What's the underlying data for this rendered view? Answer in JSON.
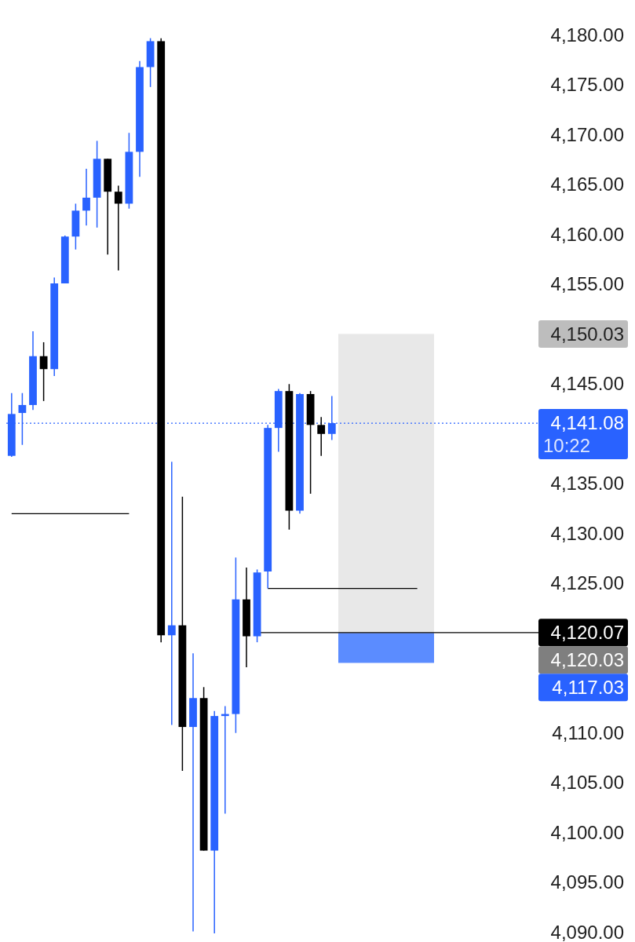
{
  "chart_data": {
    "type": "candlestick",
    "categories": [
      null,
      null,
      null,
      null,
      null,
      null,
      null,
      null,
      null,
      null,
      null,
      null,
      null,
      null,
      null,
      null,
      null,
      null,
      null,
      null,
      null,
      null,
      null,
      null,
      null,
      null,
      null,
      null,
      null,
      null,
      null,
      null,
      null,
      null,
      null,
      null,
      null,
      null,
      null,
      null,
      null,
      null,
      null,
      null,
      null,
      null,
      null,
      null,
      null,
      null
    ],
    "ohlc": [
      [
        4137.8,
        4144.1,
        4137.7,
        4142.0
      ],
      [
        4142.1,
        4144.1,
        4138.9,
        4142.9
      ],
      [
        4142.9,
        4150.3,
        4142.4,
        4147.8
      ],
      [
        4147.8,
        4149.2,
        4143.3,
        4146.5
      ],
      [
        4146.5,
        4155.7,
        4145.8,
        4155.1
      ],
      [
        4155.1,
        4159.9,
        4155.1,
        4159.8
      ],
      [
        4159.8,
        4163.1,
        4158.5,
        4162.4
      ],
      [
        4162.4,
        4166.6,
        4160.9,
        4163.7
      ],
      [
        4163.7,
        4169.4,
        4160.7,
        4167.6
      ],
      [
        4167.6,
        4167.6,
        4158.0,
        4164.3
      ],
      [
        4164.3,
        4164.9,
        4156.4,
        4163.1
      ],
      [
        4163.1,
        4170.2,
        4162.6,
        4168.3
      ],
      [
        4168.3,
        4177.4,
        4165.8,
        4176.8
      ],
      [
        4176.8,
        4179.7,
        4174.8,
        4179.4
      ],
      [
        4179.4,
        4179.7,
        4119.1,
        4119.8
      ],
      [
        4119.8,
        4137.2,
        4110.8,
        4120.8
      ],
      [
        4120.8,
        4133.7,
        4106.2,
        4110.6
      ],
      [
        4110.6,
        4118.0,
        4090.1,
        4113.5
      ],
      [
        4113.5,
        4114.6,
        4098.2,
        4098.2
      ],
      [
        4098.2,
        4112.2,
        4089.9,
        4111.7
      ],
      [
        4111.7,
        4112.7,
        4101.9,
        4111.9
      ],
      [
        4111.9,
        4127.6,
        4110.0,
        4123.4
      ],
      [
        4123.4,
        4126.6,
        4116.6,
        4119.7
      ],
      [
        4119.7,
        4126.4,
        4119.1,
        4126.1
      ],
      [
        4126.2,
        4140.9,
        4124.5,
        4140.6
      ],
      [
        4140.6,
        4144.5,
        4138.2,
        4144.3
      ],
      [
        4144.3,
        4145.0,
        4130.4,
        4132.3
      ],
      [
        4132.3,
        4144.1,
        4132.0,
        4144.0
      ],
      [
        4144.0,
        4144.3,
        4134.0,
        4140.9
      ],
      [
        4140.9,
        4141.7,
        4137.8,
        4140.0
      ],
      [
        4140.0,
        4143.8,
        4139.4,
        4141.08
      ],
      null,
      null,
      null,
      null,
      null,
      null,
      null,
      null,
      null,
      null,
      null,
      null,
      null,
      null,
      null,
      null,
      null,
      null,
      null
    ],
    "series": [
      {
        "type": "line",
        "color": "#000000",
        "values": [
          4132.0,
          4132.0,
          4132.0,
          4132.0,
          4132.0,
          4132.0,
          4132.0,
          4132.0,
          4132.0,
          4132.0,
          4132.0,
          4132.0,
          null,
          null,
          null,
          null,
          null,
          null,
          null,
          null,
          null,
          null,
          null,
          null,
          null,
          null,
          null,
          null,
          null,
          null,
          null,
          null,
          null,
          null,
          null,
          null,
          null,
          null,
          null,
          null,
          null,
          null,
          null,
          null,
          null,
          null,
          null,
          null,
          null,
          null
        ]
      },
      {
        "type": "line",
        "color": "#000000",
        "values": [
          null,
          null,
          null,
          null,
          null,
          null,
          null,
          null,
          null,
          null,
          null,
          null,
          null,
          null,
          null,
          null,
          null,
          null,
          null,
          null,
          null,
          null,
          null,
          null,
          4124.5,
          4124.5,
          4124.5,
          4124.5,
          4124.5,
          4124.5,
          4124.5,
          4124.5,
          4124.5,
          4124.5,
          4124.5,
          4124.5,
          4124.5,
          4124.5,
          4124.5,
          null,
          null,
          null,
          null,
          null,
          null,
          null,
          null,
          null,
          null,
          null
        ]
      }
    ],
    "ylim": [
      4088.4,
      4182.9
    ],
    "yticks": [
      {
        "value": 4090,
        "label": "4,090.00"
      },
      {
        "value": 4095,
        "label": "4,095.00"
      },
      {
        "value": 4100,
        "label": "4,100.00"
      },
      {
        "value": 4105,
        "label": "4,105.00"
      },
      {
        "value": 4110,
        "label": "4,110.00"
      },
      {
        "value": 4125,
        "label": "4,125.00"
      },
      {
        "value": 4130,
        "label": "4,130.00"
      },
      {
        "value": 4135,
        "label": "4,135.00"
      },
      {
        "value": 4145,
        "label": "4,145.00"
      },
      {
        "value": 4155,
        "label": "4,155.00"
      },
      {
        "value": 4160,
        "label": "4,160.00"
      },
      {
        "value": 4165,
        "label": "4,165.00"
      },
      {
        "value": 4170,
        "label": "4,170.00"
      },
      {
        "value": 4175,
        "label": "4,175.00"
      },
      {
        "value": 4180,
        "label": "4,180.00"
      }
    ],
    "grid": false,
    "ref_lines": [
      {
        "axis": "y",
        "value": 4141.08,
        "label": "4,141.08",
        "color": "#2962ff",
        "line_style": "dotted"
      },
      {
        "axis": "y",
        "value": 4120.07,
        "label": "4,120.07",
        "color": "#000000",
        "line_style": "solid"
      }
    ],
    "bands": [
      {
        "axis": "y",
        "from": 4120.03,
        "to": 4150.03,
        "color": "#e8e8e8"
      },
      {
        "axis": "y",
        "from": 4117.03,
        "to": 4120.03,
        "color": "#5b8cff"
      }
    ],
    "annotations": [
      "10:22",
      "4,150.03",
      "4,120.03",
      "4,117.03"
    ]
  }
}
